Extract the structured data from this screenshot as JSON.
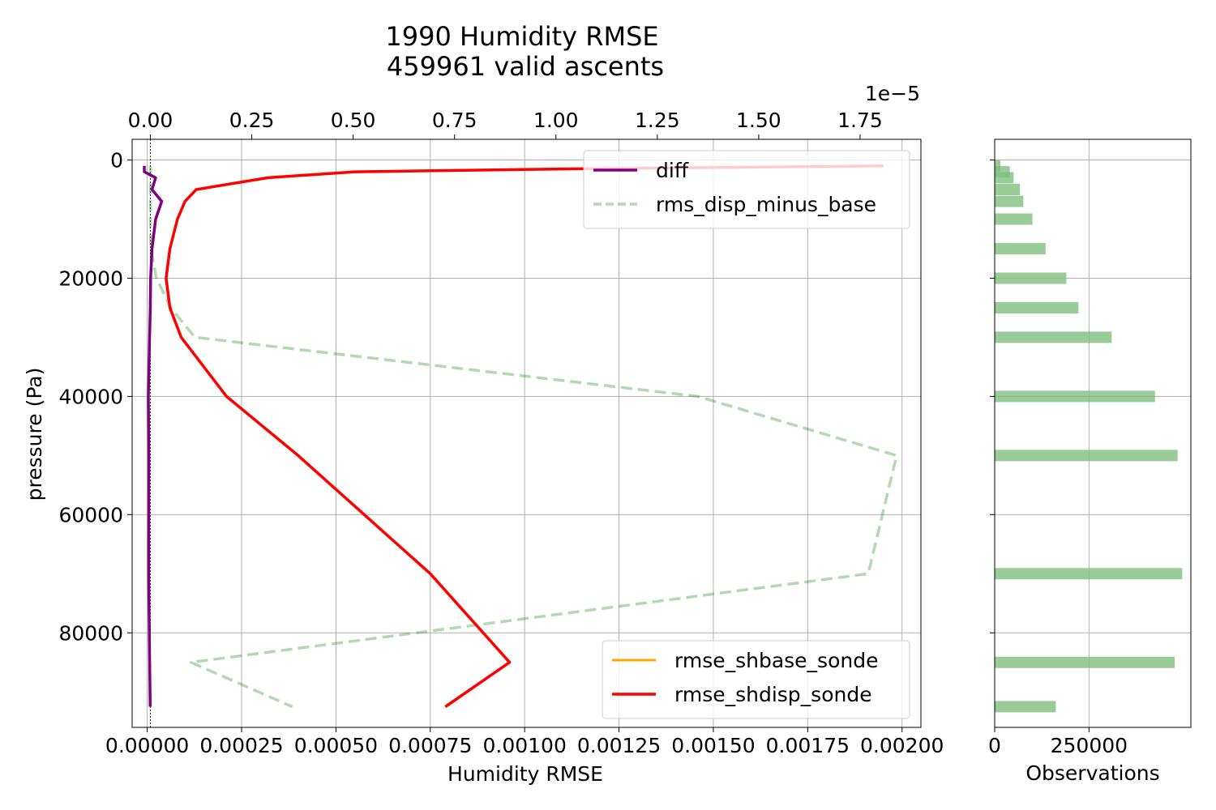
{
  "title_line1": "1990 Humidity RMSE",
  "title_line2": "459961 valid ascents",
  "colors": {
    "rmse_shbase_sonde": "#ffa500",
    "rmse_shdisp_sonde": "#ff0000",
    "diff": "#800080",
    "rms_disp_minus_base": "#008000",
    "hist": "#7fbf7f",
    "grid": "#b0b0b0"
  },
  "chart_data": [
    {
      "type": "line",
      "title": "1990 Humidity RMSE\n459961 valid ascents",
      "xlabel": "Humidity RMSE",
      "ylabel": "pressure (Pa)",
      "xlim": [
        -4e-05,
        0.00205
      ],
      "ylim": [
        96000,
        -3500
      ],
      "y_inverted": true,
      "grid": true,
      "x_ticks": [
        "0.00000",
        "0.00025",
        "0.00050",
        "0.00075",
        "0.00100",
        "0.00125",
        "0.00150",
        "0.00175",
        "0.00200"
      ],
      "y_ticks": [
        "0",
        "20000",
        "40000",
        "60000",
        "80000"
      ],
      "series": [
        {
          "name": "rmse_shbase_sonde",
          "axis": "bottom",
          "style": "solid",
          "points": [
            [
              0.00195,
              1000
            ],
            [
              0.00112,
              1500
            ],
            [
              0.00055,
              2000
            ],
            [
              0.00032,
              3000
            ],
            [
              0.00013,
              5000
            ],
            [
              0.0001,
              7000
            ],
            [
              8e-05,
              10000
            ],
            [
              6e-05,
              15000
            ],
            [
              5e-05,
              20000
            ],
            [
              6e-05,
              25000
            ],
            [
              9e-05,
              30000
            ],
            [
              0.00021,
              40000
            ],
            [
              0.0004,
              50000
            ],
            [
              0.00075,
              70000
            ],
            [
              0.00096,
              85000
            ],
            [
              0.00079,
              92500
            ]
          ]
        },
        {
          "name": "rmse_shdisp_sonde",
          "axis": "bottom",
          "style": "solid",
          "points": [
            [
              0.00195,
              1000
            ],
            [
              0.00112,
              1500
            ],
            [
              0.00055,
              2000
            ],
            [
              0.00032,
              3000
            ],
            [
              0.00013,
              5000
            ],
            [
              0.0001,
              7000
            ],
            [
              8e-05,
              10000
            ],
            [
              6e-05,
              15000
            ],
            [
              5e-05,
              20000
            ],
            [
              6e-05,
              25000
            ],
            [
              9e-05,
              30000
            ],
            [
              0.00021,
              40000
            ],
            [
              0.0004,
              50000
            ],
            [
              0.00075,
              70000
            ],
            [
              0.00096,
              85000
            ],
            [
              0.00079,
              92500
            ]
          ]
        },
        {
          "name": "diff",
          "axis": "top",
          "style": "solid",
          "points": [
            [
              -1.5e-07,
              1000
            ],
            [
              -1.5e-07,
              2000
            ],
            [
              1.3e-07,
              3000
            ],
            [
              4e-08,
              5000
            ],
            [
              2.8e-07,
              7000
            ],
            [
              1.3e-07,
              10000
            ],
            [
              4e-08,
              15000
            ],
            [
              5e-09,
              20000
            ],
            [
              -2e-09,
              25000
            ],
            [
              -2e-08,
              30000
            ],
            [
              -5e-08,
              40000
            ],
            [
              -3.8e-08,
              50000
            ],
            [
              -4.2e-08,
              70000
            ],
            [
              -1.8e-08,
              85000
            ],
            [
              -5e-09,
              92500
            ]
          ]
        },
        {
          "name": "rms_disp_minus_base",
          "axis": "top",
          "style": "dashed",
          "points": [
            [
              0.0,
              1000
            ],
            [
              0.0,
              2000
            ],
            [
              0.0,
              5000
            ],
            [
              0.0,
              10000
            ],
            [
              1e-08,
              15000
            ],
            [
              1.5e-07,
              20000
            ],
            [
              5e-07,
              25000
            ],
            [
              1.1e-06,
              30000
            ],
            [
              1.35e-05,
              40000
            ],
            [
              1.84e-05,
              50000
            ],
            [
              1.77e-05,
              70000
            ],
            [
              1e-06,
              85000
            ],
            [
              3.5e-06,
              92500
            ]
          ]
        }
      ],
      "top_axis": {
        "xlim": [
          -4.5e-07,
          1.9e-05
        ],
        "ticks": [
          "0.00",
          "0.25",
          "0.50",
          "0.75",
          "1.00",
          "1.25",
          "1.50",
          "1.75"
        ],
        "offset_label": "1e−5"
      },
      "legend_top": [
        "diff",
        "rms_disp_minus_base"
      ],
      "legend_bottom": [
        "rmse_shbase_sonde",
        "rmse_shdisp_sonde"
      ],
      "legend_top_placement": "upper right",
      "legend_bottom_placement": "lower right"
    },
    {
      "type": "bar",
      "orientation": "horizontal",
      "xlabel": "Observations",
      "x_ticks": [
        "0",
        "250000"
      ],
      "xlim": [
        0,
        520000
      ],
      "ylim": [
        96000,
        -3500
      ],
      "grid": true,
      "categories": [
        1000,
        2000,
        3000,
        5000,
        7000,
        10000,
        15000,
        20000,
        25000,
        30000,
        40000,
        50000,
        70000,
        85000,
        92500
      ],
      "values": [
        15000,
        40000,
        50000,
        67000,
        76000,
        100000,
        135000,
        190000,
        222000,
        310000,
        425000,
        485000,
        497000,
        477000,
        162000
      ]
    }
  ]
}
